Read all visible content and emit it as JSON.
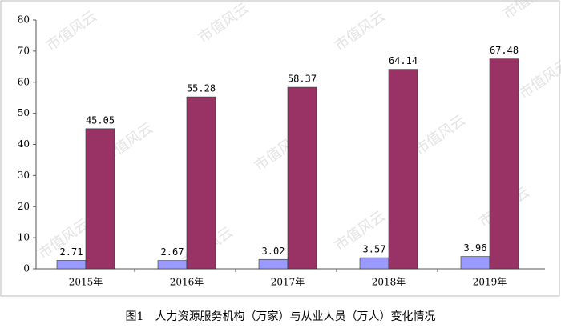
{
  "chart_data": {
    "type": "bar",
    "title": "图1　人力资源服务机构（万家）与从业人员（万人）变化情况",
    "watermark": "市值风云",
    "categories": [
      "2015年",
      "2016年",
      "2017年",
      "2018年",
      "2019年"
    ],
    "series": [
      {
        "color": "#9999ff",
        "values": [
          2.71,
          2.67,
          3.02,
          3.57,
          3.96
        ]
      },
      {
        "color": "#993366",
        "values": [
          45.05,
          55.28,
          58.37,
          64.14,
          67.48
        ]
      }
    ],
    "ylim": [
      0,
      80
    ],
    "yticks": [
      0,
      10,
      20,
      30,
      40,
      50,
      60,
      70,
      80
    ],
    "grid": false
  }
}
